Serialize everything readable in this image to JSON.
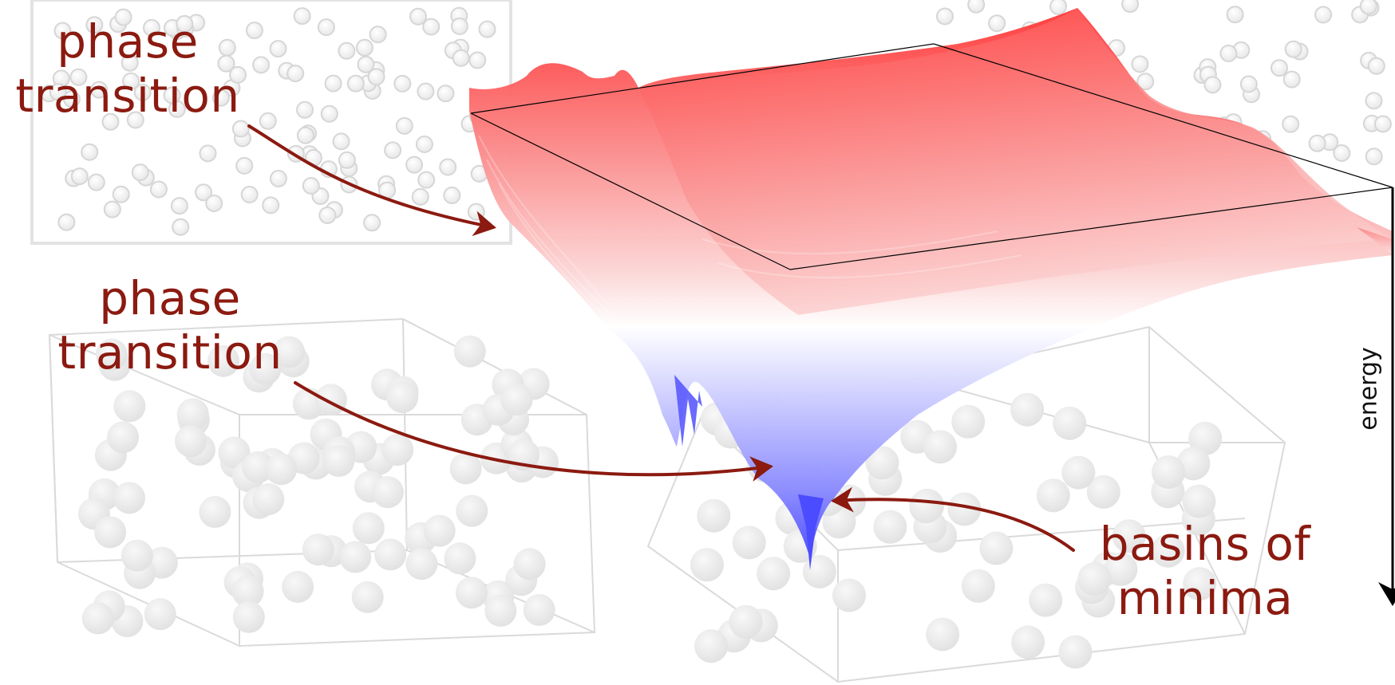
{
  "labels": {
    "upper_transition": {
      "line1": "phase",
      "line2": "transition"
    },
    "lower_transition": {
      "line1": "phase",
      "line2": "transition"
    },
    "basins": {
      "line1": "basins of",
      "line2": "minima"
    },
    "energy_axis": "energy"
  },
  "colors": {
    "annotation": "#8b1a10",
    "surface_high": "#ff3b3b",
    "surface_mid": "#ffffff",
    "surface_low": "#5c5cff",
    "particles": "#e6e6e6",
    "box_lines": "#d9d9d9",
    "axis": "#000000"
  },
  "icons": [
    "energy-landscape-surface",
    "particle-lattice",
    "annotation-arrow",
    "energy-axis-arrow"
  ]
}
